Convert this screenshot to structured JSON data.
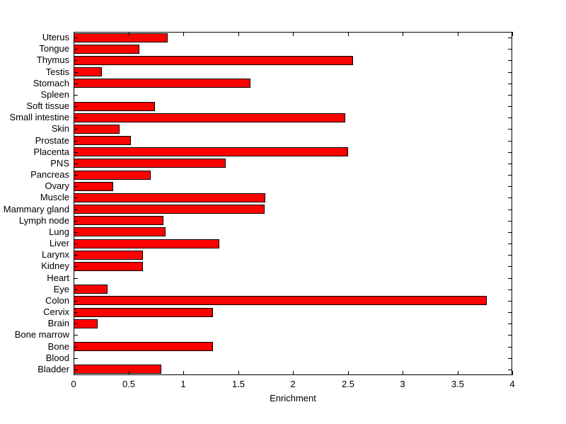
{
  "chart_data": {
    "type": "bar",
    "orientation": "horizontal",
    "xlabel": "Enrichment",
    "xlim": [
      0,
      4
    ],
    "xticks": [
      0,
      0.5,
      1,
      1.5,
      2,
      2.5,
      3,
      3.5,
      4
    ],
    "xtick_labels": [
      "0",
      "0.5",
      "1",
      "1.5",
      "2",
      "2.5",
      "3",
      "3.5",
      "4"
    ],
    "grid": false,
    "bar_color": "#ff0000",
    "bar_edge_color": "#000000",
    "background_color": "#ffffff",
    "categories_top_to_bottom": [
      "Uterus",
      "Tongue",
      "Thymus",
      "Testis",
      "Stomach",
      "Spleen",
      "Soft tissue",
      "Small intestine",
      "Skin",
      "Prostate",
      "Placenta",
      "PNS",
      "Pancreas",
      "Ovary",
      "Muscle",
      "Mammary gland",
      "Lymph node",
      "Lung",
      "Liver",
      "Larynx",
      "Kidney",
      "Heart",
      "Eye",
      "Colon",
      "Cervix",
      "Brain",
      "Bone marrow",
      "Bone",
      "Blood",
      "Bladder"
    ],
    "values": [
      0.86,
      0.6,
      2.55,
      0.26,
      1.61,
      0,
      0.74,
      2.48,
      0.42,
      0.52,
      2.5,
      1.39,
      0.7,
      0.36,
      1.75,
      1.74,
      0.82,
      0.84,
      1.33,
      0.63,
      0.63,
      0,
      0.31,
      3.77,
      1.27,
      0.22,
      0,
      1.27,
      0,
      0.8
    ]
  }
}
